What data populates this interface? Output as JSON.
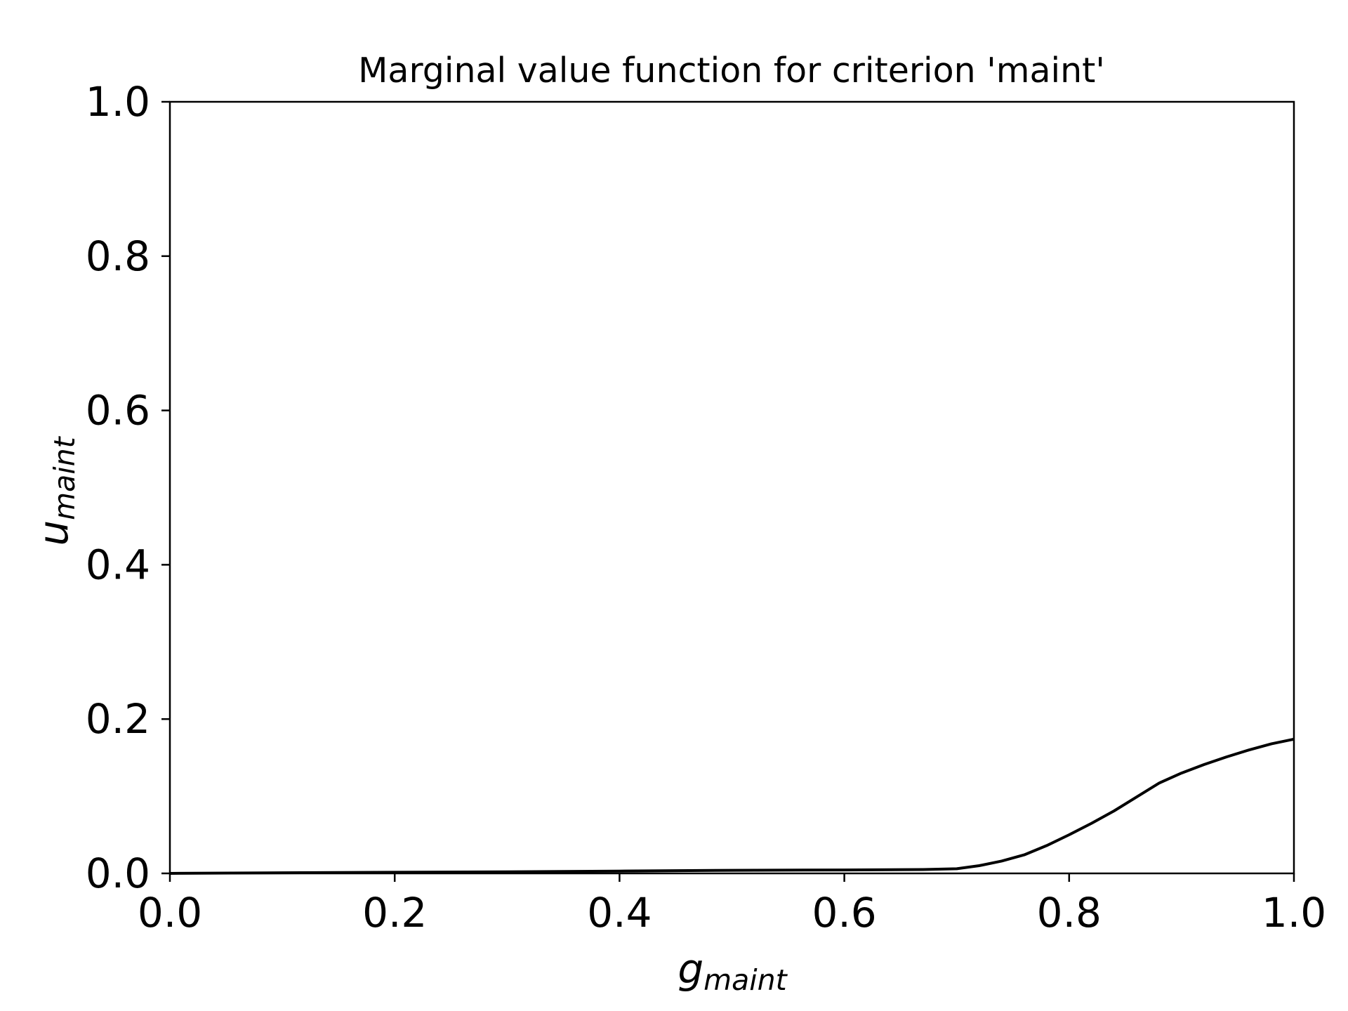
{
  "chart_data": {
    "type": "line",
    "title": "Marginal value function for criterion 'maint'",
    "xlabel": {
      "main": "g",
      "sub": "maint"
    },
    "ylabel": {
      "main": "u",
      "sub": "maint"
    },
    "xlim": [
      0.0,
      1.0
    ],
    "ylim": [
      0.0,
      1.0
    ],
    "xticks": [
      "0.0",
      "0.2",
      "0.4",
      "0.6",
      "0.8",
      "1.0"
    ],
    "yticks": [
      "0.0",
      "0.2",
      "0.4",
      "0.6",
      "0.8",
      "1.0"
    ],
    "grid": false,
    "line_color": "#000000",
    "series": [
      {
        "x": [
          0.0,
          0.1,
          0.2,
          0.3,
          0.4,
          0.5,
          0.6,
          0.67,
          0.7,
          0.72,
          0.74,
          0.76,
          0.78,
          0.8,
          0.82,
          0.84,
          0.86,
          0.88,
          0.9,
          0.92,
          0.94,
          0.96,
          0.98,
          1.0
        ],
        "y": [
          0.0,
          0.0008,
          0.0015,
          0.002,
          0.003,
          0.004,
          0.0045,
          0.005,
          0.006,
          0.01,
          0.016,
          0.024,
          0.036,
          0.05,
          0.065,
          0.081,
          0.099,
          0.117,
          0.13,
          0.141,
          0.151,
          0.16,
          0.168,
          0.174
        ]
      }
    ]
  }
}
